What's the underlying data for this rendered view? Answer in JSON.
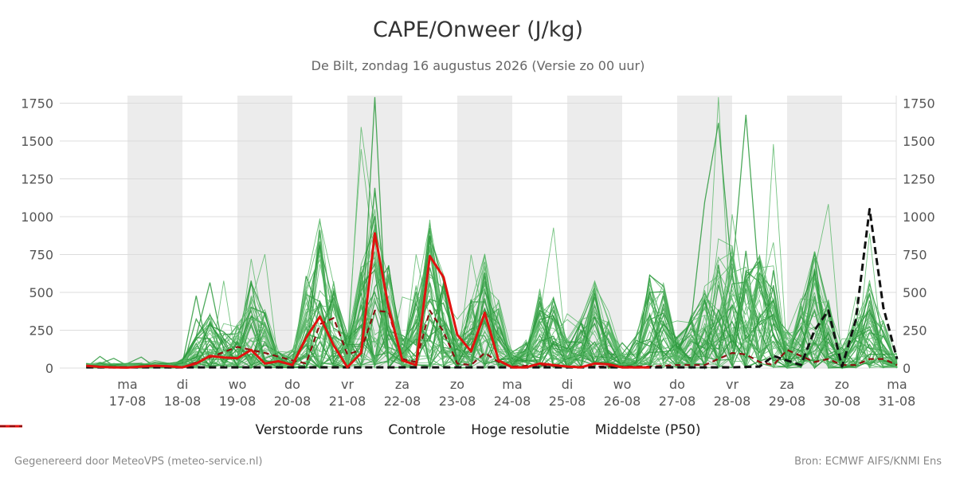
{
  "chart_data": {
    "type": "line",
    "title": "CAPE/Onweer (J/kg)",
    "subtitle": "De Bilt, zondag 16 augustus 2026 (Versie zo 00 uur)",
    "ylim": [
      0,
      1800
    ],
    "yticks": [
      "0",
      "250",
      "500",
      "750",
      "1000",
      "1250",
      "1500",
      "1750"
    ],
    "x_day_labels": [
      "ma",
      "di",
      "wo",
      "do",
      "vr",
      "za",
      "zo",
      "ma",
      "di",
      "wo",
      "do",
      "vr",
      "za",
      "zo",
      "ma"
    ],
    "x_date_labels": [
      "17-08",
      "18-08",
      "19-08",
      "20-08",
      "21-08",
      "22-08",
      "23-08",
      "24-08",
      "25-08",
      "26-08",
      "27-08",
      "28-08",
      "29-08",
      "30-08",
      "31-08"
    ],
    "x_start_day": -0.75,
    "x_end_day": 14,
    "series": [
      {
        "name": "Hoge resolutie",
        "style": "solid",
        "color": "#e0120f",
        "points": [
          [
            -0.75,
            15
          ],
          [
            -0.5,
            8
          ],
          [
            -0.25,
            5
          ],
          [
            0,
            3
          ],
          [
            0.25,
            10
          ],
          [
            0.5,
            15
          ],
          [
            0.75,
            12
          ],
          [
            1,
            5
          ],
          [
            1.25,
            30
          ],
          [
            1.5,
            80
          ],
          [
            1.75,
            70
          ],
          [
            2,
            65
          ],
          [
            2.25,
            120
          ],
          [
            2.5,
            30
          ],
          [
            2.75,
            45
          ],
          [
            3,
            20
          ],
          [
            3.25,
            200
          ],
          [
            3.5,
            340
          ],
          [
            3.75,
            150
          ],
          [
            4,
            5
          ],
          [
            4.25,
            100
          ],
          [
            4.5,
            890
          ],
          [
            4.75,
            400
          ],
          [
            5,
            50
          ],
          [
            5.25,
            20
          ],
          [
            5.5,
            740
          ],
          [
            5.75,
            600
          ],
          [
            6,
            220
          ],
          [
            6.25,
            110
          ],
          [
            6.5,
            365
          ],
          [
            6.75,
            50
          ],
          [
            7,
            5
          ],
          [
            7.25,
            5
          ],
          [
            7.5,
            30
          ],
          [
            7.75,
            20
          ],
          [
            8,
            10
          ],
          [
            8.25,
            5
          ],
          [
            8.5,
            30
          ],
          [
            8.75,
            25
          ],
          [
            9,
            5
          ],
          [
            9.25,
            5
          ],
          [
            9.5,
            5
          ]
        ]
      },
      {
        "name": "Controle",
        "style": "dashed",
        "color": "#111111",
        "points": [
          [
            -0.75,
            5
          ],
          [
            0,
            5
          ],
          [
            1,
            5
          ],
          [
            2,
            5
          ],
          [
            3,
            5
          ],
          [
            4,
            5
          ],
          [
            5,
            5
          ],
          [
            6,
            5
          ],
          [
            7,
            5
          ],
          [
            8,
            5
          ],
          [
            9,
            5
          ],
          [
            10,
            5
          ],
          [
            11,
            5
          ],
          [
            11.5,
            10
          ],
          [
            11.75,
            80
          ],
          [
            12,
            50
          ],
          [
            12.25,
            20
          ],
          [
            12.5,
            250
          ],
          [
            12.75,
            380
          ],
          [
            13,
            10
          ],
          [
            13.25,
            320
          ],
          [
            13.5,
            1050
          ],
          [
            13.75,
            400
          ],
          [
            14,
            60
          ]
        ]
      },
      {
        "name": "Middelste (P50)",
        "style": "dashed",
        "color": "#8b0f0f",
        "points": [
          [
            -0.75,
            15
          ],
          [
            -0.5,
            8
          ],
          [
            0,
            3
          ],
          [
            0.5,
            15
          ],
          [
            1,
            5
          ],
          [
            1.5,
            70
          ],
          [
            2,
            140
          ],
          [
            2.5,
            100
          ],
          [
            3,
            50
          ],
          [
            3.25,
            30
          ],
          [
            3.5,
            290
          ],
          [
            3.75,
            330
          ],
          [
            4,
            90
          ],
          [
            4.25,
            120
          ],
          [
            4.5,
            380
          ],
          [
            4.75,
            370
          ],
          [
            5,
            60
          ],
          [
            5.25,
            40
          ],
          [
            5.5,
            380
          ],
          [
            5.75,
            240
          ],
          [
            6,
            30
          ],
          [
            6.25,
            20
          ],
          [
            6.5,
            100
          ],
          [
            6.75,
            40
          ],
          [
            7,
            10
          ],
          [
            7.5,
            20
          ],
          [
            8,
            10
          ],
          [
            8.5,
            10
          ],
          [
            9,
            10
          ],
          [
            9.5,
            10
          ],
          [
            10,
            20
          ],
          [
            10.5,
            20
          ],
          [
            11,
            100
          ],
          [
            11.25,
            90
          ],
          [
            11.5,
            40
          ],
          [
            11.75,
            20
          ],
          [
            12,
            120
          ],
          [
            12.25,
            80
          ],
          [
            12.5,
            40
          ],
          [
            12.75,
            60
          ],
          [
            13,
            20
          ],
          [
            13.25,
            20
          ],
          [
            13.5,
            60
          ],
          [
            13.75,
            60
          ],
          [
            14,
            20
          ]
        ]
      },
      {
        "name": "Verstoorde runs",
        "style": "ensemble",
        "color": "#3fa34d"
      }
    ]
  },
  "legend": {
    "items": [
      {
        "label": "Verstoorde runs"
      },
      {
        "label": "Controle"
      },
      {
        "label": "Hoge resolutie"
      },
      {
        "label": "Middelste (P50)"
      }
    ]
  },
  "footer": {
    "left": "Gegenereerd door MeteoVPS (meteo-service.nl)",
    "right": "Bron: ECMWF AIFS/KNMI Ens"
  }
}
